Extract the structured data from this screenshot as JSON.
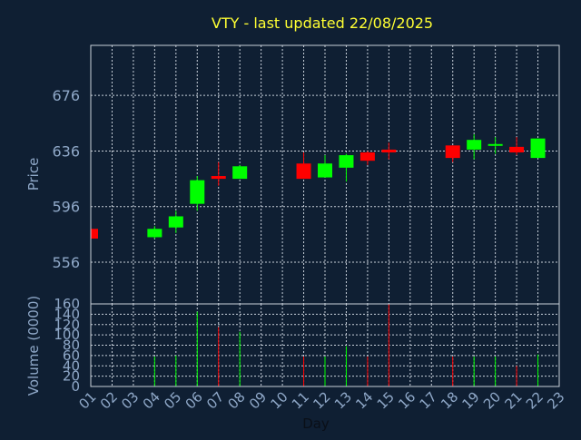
{
  "chart_data": {
    "type": "candlestick",
    "title": "VTY - last updated 22/08/2025",
    "xlabel": "Day",
    "price_panel": {
      "ylabel": "Price",
      "yticks": [
        556,
        596,
        636,
        676
      ],
      "ylim": [
        526,
        712
      ]
    },
    "volume_panel": {
      "ylabel": "Volume (0000)",
      "yticks": [
        0,
        20,
        40,
        60,
        80,
        100,
        120,
        140,
        160
      ],
      "ylim": [
        0,
        160
      ]
    },
    "x_ticks": [
      "01",
      "02",
      "03",
      "04",
      "05",
      "06",
      "07",
      "08",
      "09",
      "10",
      "11",
      "12",
      "13",
      "14",
      "15",
      "16",
      "17",
      "18",
      "19",
      "20",
      "21",
      "22",
      "23"
    ],
    "grid": true,
    "colors": {
      "background": "#0f1f33",
      "panel_border": "#c8d0da",
      "grid": "#c8d0da",
      "title": "#ffff33",
      "axis_text": "#8fa8c8",
      "up": "#00ff00",
      "down": "#ff0000"
    },
    "candles": [
      {
        "day": 1,
        "open": 580,
        "high": 580,
        "low": 572,
        "close": 573,
        "volume": 0
      },
      {
        "day": 4,
        "open": 574,
        "high": 582,
        "low": 573,
        "close": 580,
        "volume": 58
      },
      {
        "day": 5,
        "open": 581,
        "high": 593,
        "low": 577,
        "close": 589,
        "volume": 60
      },
      {
        "day": 6,
        "open": 598,
        "high": 618,
        "low": 593,
        "close": 615,
        "volume": 145
      },
      {
        "day": 7,
        "open": 618,
        "high": 628,
        "low": 611,
        "close": 616,
        "volume": 115
      },
      {
        "day": 8,
        "open": 616,
        "high": 626,
        "low": 616,
        "close": 625,
        "volume": 106
      },
      {
        "day": 11,
        "open": 627,
        "high": 635,
        "low": 616,
        "close": 616,
        "volume": 58
      },
      {
        "day": 12,
        "open": 617,
        "high": 633,
        "low": 617,
        "close": 627,
        "volume": 58
      },
      {
        "day": 13,
        "open": 624,
        "high": 634,
        "low": 614,
        "close": 633,
        "volume": 78
      },
      {
        "day": 14,
        "open": 635,
        "high": 636,
        "low": 626,
        "close": 629,
        "volume": 58
      },
      {
        "day": 15,
        "open": 637,
        "high": 642,
        "low": 630,
        "close": 635,
        "volume": 160
      },
      {
        "day": 18,
        "open": 640,
        "high": 640,
        "low": 628,
        "close": 631,
        "volume": 58
      },
      {
        "day": 19,
        "open": 637,
        "high": 648,
        "low": 630,
        "close": 644,
        "volume": 58
      },
      {
        "day": 20,
        "open": 640,
        "high": 646,
        "low": 634,
        "close": 641,
        "volume": 58
      },
      {
        "day": 21,
        "open": 639,
        "high": 646,
        "low": 633,
        "close": 635,
        "volume": 40
      },
      {
        "day": 22,
        "open": 631,
        "high": 645,
        "low": 631,
        "close": 645,
        "volume": 62
      }
    ]
  }
}
